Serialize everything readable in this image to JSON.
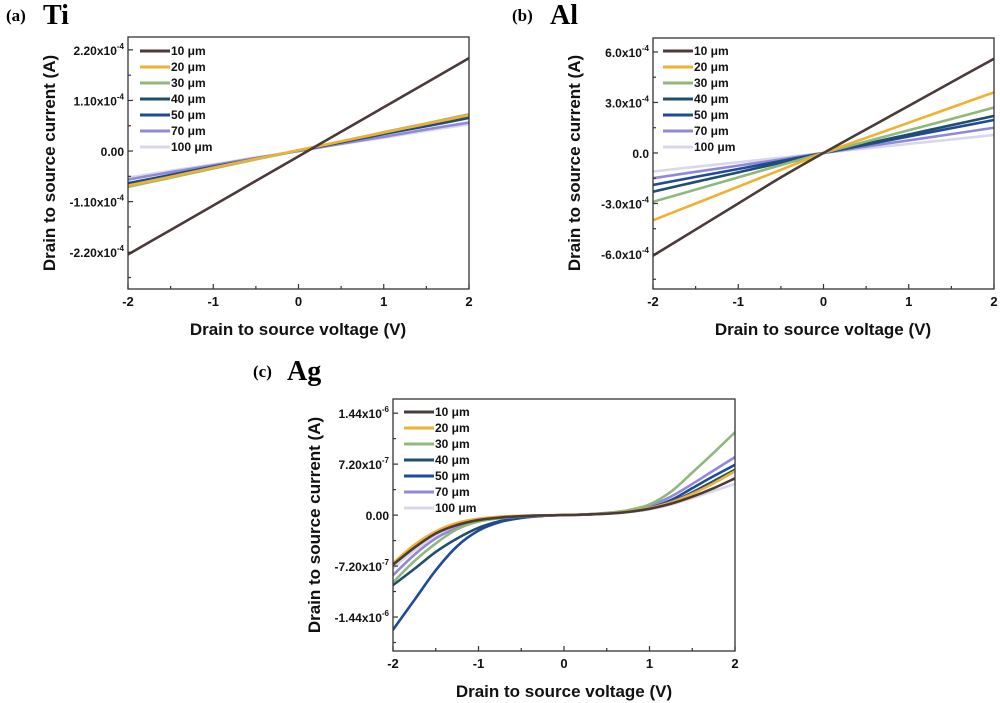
{
  "chart_data": [
    {
      "id": "a",
      "type": "line",
      "panel_label": "(a)",
      "title": "Ti",
      "xlabel": "Drain to source voltage (V)",
      "ylabel": "Drain to source current (A)",
      "xlim": [
        -2,
        2
      ],
      "ylim": [
        -0.0003,
        0.000248
      ],
      "xticks": [
        -2,
        -1,
        0,
        1,
        2
      ],
      "xtick_labels": [
        "-2",
        "-1",
        "0",
        "1",
        "2"
      ],
      "yticks": [
        0.00022,
        0.00011,
        0,
        -0.00011,
        -0.00022
      ],
      "ytick_labels": [
        {
          "mant": "2.20x10",
          "exp": "-4"
        },
        {
          "mant": "1.10x10",
          "exp": "-4"
        },
        {
          "mant": "0.00",
          "exp": ""
        },
        {
          "mant": "-1.10x10",
          "exp": "-4"
        },
        {
          "mant": "-2.20x10",
          "exp": "-4"
        }
      ],
      "legend_position": "top-left",
      "grid": false,
      "x": [
        -2,
        -1.5,
        -1,
        -0.5,
        0,
        0.5,
        1,
        1.5,
        2
      ],
      "series": [
        {
          "name": "10 μm",
          "color": "#4a3a3a",
          "values": [
            -0.000225,
            -0.0001716,
            -0.0001183,
            -6.49e-05,
            -1.15e-05,
            4.19e-05,
            9.53e-05,
            0.0001486,
            0.000202
          ]
        },
        {
          "name": "20  μm",
          "color": "#f0b030",
          "values": [
            -7.5e-05,
            -5.6e-05,
            -3.6e-05,
            -1.7e-05,
            2e-06,
            2.1e-05,
            4e-05,
            5.9e-05,
            7.8e-05
          ]
        },
        {
          "name": "30 μm",
          "color": "#8fb87a",
          "values": [
            -7.8e-05,
            -5.8e-05,
            -3.8e-05,
            -1.8e-05,
            1e-06,
            2.1e-05,
            4.1e-05,
            6e-05,
            8e-05
          ]
        },
        {
          "name": "40 μm",
          "color": "#1f4e6e",
          "values": [
            -7.2e-05,
            -5.4e-05,
            -3.5e-05,
            -1.7e-05,
            1e-06,
            1.9e-05,
            3.8e-05,
            5.6e-05,
            7.4e-05
          ]
        },
        {
          "name": "50 μm",
          "color": "#1f4a9a",
          "values": [
            -7e-05,
            -5.2e-05,
            -3.4e-05,
            -1.7e-05,
            1e-06,
            1.9e-05,
            3.7e-05,
            5.4e-05,
            7.2e-05
          ]
        },
        {
          "name": "70 μm",
          "color": "#9088d8",
          "values": [
            -6.2e-05,
            -4.6e-05,
            -3.1e-05,
            -1.5e-05,
            0.0,
            1.6e-05,
            3.1e-05,
            4.7e-05,
            6.2e-05
          ]
        },
        {
          "name": "100 μm",
          "color": "#d8d8ec",
          "values": [
            -5.8e-05,
            -4.3e-05,
            -2.9e-05,
            -1.4e-05,
            0.0,
            1.5e-05,
            2.9e-05,
            4.4e-05,
            5.8e-05
          ]
        }
      ]
    },
    {
      "id": "b",
      "type": "line",
      "panel_label": "(b)",
      "title": "Al",
      "xlabel": "Drain to source voltage (V)",
      "ylabel": "Drain to source current (A)",
      "xlim": [
        -2,
        2
      ],
      "ylim": [
        -0.000808,
        0.000683
      ],
      "xticks": [
        -2,
        -1,
        0,
        1,
        2
      ],
      "xtick_labels": [
        "-2",
        "-1",
        "0",
        "1",
        "2"
      ],
      "yticks": [
        0.0006,
        0.0003,
        0,
        -0.0003,
        -0.0006
      ],
      "ytick_labels": [
        {
          "mant": "6.0x10",
          "exp": "-4"
        },
        {
          "mant": "3.0x10",
          "exp": "-4"
        },
        {
          "mant": "0.0",
          "exp": ""
        },
        {
          "mant": "-3.0x10",
          "exp": "-4"
        },
        {
          "mant": "-6.0x10",
          "exp": "-4"
        }
      ],
      "legend_position": "top-left",
      "grid": false,
      "x": [
        -2,
        -1.5,
        -1,
        -0.5,
        0,
        0.5,
        1,
        1.5,
        2
      ],
      "series": [
        {
          "name": "10 μm",
          "color": "#4a3a3a",
          "values": [
            -0.00061,
            -0.000455,
            -0.0003,
            -0.000145,
            0,
            0.00014,
            0.00028,
            0.00042,
            0.00056
          ]
        },
        {
          "name": "20  μm",
          "color": "#f0b030",
          "values": [
            -0.0004,
            -0.0003,
            -0.0002,
            -0.0001,
            0,
            9e-05,
            0.00018,
            0.00027,
            0.00036
          ]
        },
        {
          "name": "30 μm",
          "color": "#8fb87a",
          "values": [
            -0.00029,
            -0.000218,
            -0.000145,
            -7.2e-05,
            0,
            6.8e-05,
            0.000135,
            0.000202,
            0.00027
          ]
        },
        {
          "name": "40 μm",
          "color": "#1f4e6e",
          "values": [
            -0.00023,
            -0.000172,
            -0.000115,
            -5.8e-05,
            0,
            5.5e-05,
            0.00011,
            0.000165,
            0.00022
          ]
        },
        {
          "name": "50 μm",
          "color": "#1f4a9a",
          "values": [
            -0.00019,
            -0.000142,
            -9.5e-05,
            -4.8e-05,
            0,
            4.9e-05,
            9.8e-05,
            0.000147,
            0.000196
          ]
        },
        {
          "name": "70 μm",
          "color": "#9088d8",
          "values": [
            -0.00015,
            -0.000112,
            -7.5e-05,
            -3.8e-05,
            0,
            3.8e-05,
            7.5e-05,
            0.000112,
            0.00015
          ]
        },
        {
          "name": "100 μm",
          "color": "#d8d8ec",
          "values": [
            -0.00011,
            -8.2e-05,
            -5.5e-05,
            -2.8e-05,
            0,
            2.7e-05,
            5.4e-05,
            8e-05,
            0.000107
          ]
        }
      ]
    },
    {
      "id": "c",
      "type": "line",
      "panel_label": "(c)",
      "title": "Ag",
      "xlabel": "Drain to source voltage (V)",
      "ylabel": "Drain to source current (A)",
      "xlim": [
        -2,
        2
      ],
      "ylim": [
        -1.92e-06,
        1.64e-06
      ],
      "xticks": [
        -2,
        -1,
        0,
        1,
        2
      ],
      "xtick_labels": [
        "-2",
        "-1",
        "0",
        "1",
        "2"
      ],
      "yticks": [
        1.44e-06,
        7.2e-07,
        0,
        -7.2e-07,
        -1.44e-06
      ],
      "ytick_labels": [
        {
          "mant": "1.44x10",
          "exp": "-6"
        },
        {
          "mant": "7.20x10",
          "exp": "-7"
        },
        {
          "mant": "0.00",
          "exp": ""
        },
        {
          "mant": "-7.20x10",
          "exp": "-7"
        },
        {
          "mant": "-1.44x10",
          "exp": "-6"
        }
      ],
      "legend_position": "top-left",
      "grid": false,
      "x": [
        -2,
        -1.75,
        -1.5,
        -1.25,
        -1,
        -0.75,
        -0.5,
        -0.25,
        0,
        0.25,
        0.5,
        0.75,
        1,
        1.25,
        1.5,
        1.75,
        2
      ],
      "series": [
        {
          "name": "10 μm",
          "color": "#4a3a3a",
          "values": [
            -7e-07,
            -4.6e-07,
            -2.6e-07,
            -1.4e-07,
            -7e-08,
            -3.5e-08,
            -1.5e-08,
            -5e-09,
            0,
            8e-09,
            2e-08,
            4.5e-08,
            9e-08,
            1.6e-07,
            2.6e-07,
            3.8e-07,
            5.2e-07
          ]
        },
        {
          "name": "20  μm",
          "color": "#f0b030",
          "values": [
            -6.8e-07,
            -4.2e-07,
            -2.3e-07,
            -1.1e-07,
            -5e-08,
            -2.2e-08,
            -1e-08,
            -3e-09,
            0,
            7e-09,
            2e-08,
            5e-08,
            1e-07,
            1.8e-07,
            3e-07,
            4.5e-07,
            6.2e-07
          ]
        },
        {
          "name": "30 μm",
          "color": "#8fb87a",
          "values": [
            -9.5e-07,
            -6.5e-07,
            -4e-07,
            -2e-07,
            -9e-08,
            -4.5e-08,
            -2e-08,
            -7e-09,
            0,
            1e-08,
            3e-08,
            7e-08,
            1.5e-07,
            3.3e-07,
            6e-07,
            8.8e-07,
            1.17e-06
          ]
        },
        {
          "name": "40 μm",
          "color": "#1f4e6e",
          "values": [
            -9.9e-07,
            -7.6e-07,
            -5.2e-07,
            -3.3e-07,
            -1.8e-07,
            -8.5e-08,
            -3.5e-08,
            -1e-08,
            0,
            8e-09,
            2.5e-08,
            5e-08,
            9e-08,
            1.8e-07,
            3.2e-07,
            4.8e-07,
            6.4e-07
          ]
        },
        {
          "name": "50 μm",
          "color": "#1f4a9a",
          "values": [
            -1.62e-06,
            -1.2e-06,
            -7.8e-07,
            -4.4e-07,
            -2.2e-07,
            -1e-07,
            -4e-08,
            -1.2e-08,
            0,
            8e-09,
            2.5e-08,
            5e-08,
            1e-07,
            2.1e-07,
            3.8e-07,
            5.5e-07,
            7.1e-07
          ]
        },
        {
          "name": "70 μm",
          "color": "#9088d8",
          "values": [
            -8.5e-07,
            -5.6e-07,
            -3.3e-07,
            -1.8e-07,
            -9e-08,
            -4.2e-08,
            -2e-08,
            -6e-09,
            0,
            1e-08,
            3e-08,
            6.5e-08,
            1.3e-07,
            2.6e-07,
            4.4e-07,
            6.3e-07,
            8.2e-07
          ]
        },
        {
          "name": "100 μm",
          "color": "#d8d8ec",
          "values": [
            -7.5e-07,
            -5e-07,
            -3e-07,
            -1.6e-07,
            -8e-08,
            -3.6e-08,
            -1.5e-08,
            -5e-09,
            0,
            7e-09,
            2e-08,
            4e-08,
            8e-08,
            1.5e-07,
            2.4e-07,
            3.4e-07,
            4.4e-07
          ]
        }
      ]
    }
  ]
}
